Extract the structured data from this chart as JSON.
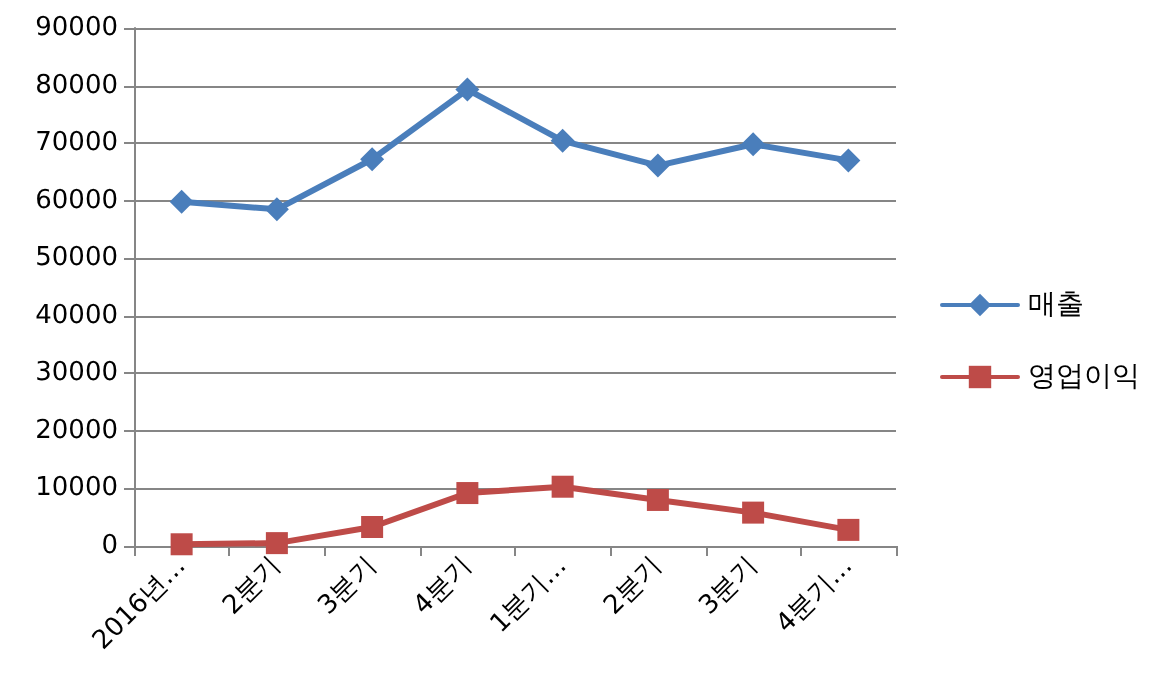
{
  "chart_data": {
    "type": "line",
    "categories": [
      "2016년…",
      "2분기",
      "3분기",
      "4분기",
      "1분기…",
      "2분기",
      "3분기",
      "4분기…"
    ],
    "series": [
      {
        "name": "매출",
        "color": "#4a7ebb",
        "marker": "diamond",
        "values": [
          59800,
          58500,
          67200,
          79300,
          70400,
          66100,
          69800,
          67000
        ]
      },
      {
        "name": "영업이익",
        "color": "#be4b48",
        "marker": "square",
        "values": [
          300,
          500,
          3300,
          9200,
          10300,
          8000,
          5800,
          2800
        ]
      }
    ],
    "ylim": [
      0,
      90000
    ],
    "yticks": [
      0,
      10000,
      20000,
      30000,
      40000,
      50000,
      60000,
      70000,
      80000,
      90000
    ],
    "grid": "y",
    "legend": "right"
  }
}
